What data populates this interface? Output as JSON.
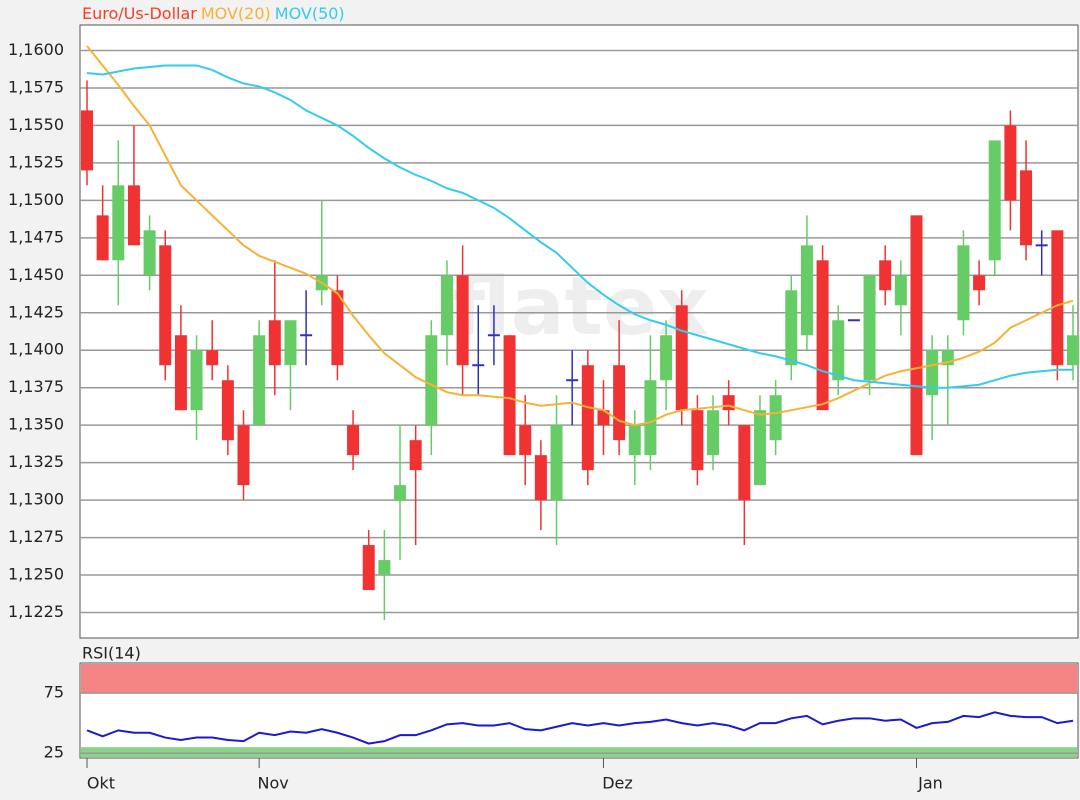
{
  "chart_data": [
    {
      "type": "candlestick",
      "name": "Euro/Us-Dollar",
      "name_color": "#ff3b1f",
      "watermark": "flatex",
      "categories": [
        "Okt",
        null,
        null,
        null,
        null,
        null,
        null,
        null,
        null,
        null,
        null,
        "Nov",
        null,
        null,
        null,
        null,
        null,
        null,
        null,
        null,
        null,
        null,
        null,
        null,
        null,
        null,
        null,
        null,
        null,
        null,
        null,
        null,
        null,
        "Dez",
        null,
        null,
        null,
        null,
        null,
        null,
        null,
        null,
        null,
        null,
        null,
        null,
        null,
        null,
        null,
        null,
        null,
        null,
        null,
        "Jan",
        null,
        null,
        null,
        null,
        null,
        null,
        null,
        null,
        null,
        null
      ],
      "open": [
        1.156,
        1.149,
        1.146,
        1.151,
        1.145,
        1.147,
        1.141,
        1.136,
        1.14,
        1.138,
        1.135,
        1.135,
        1.142,
        1.139,
        1.141,
        1.144,
        1.144,
        1.135,
        1.127,
        1.125,
        1.13,
        1.134,
        1.135,
        1.141,
        1.145,
        1.139,
        1.141,
        1.141,
        1.135,
        1.133,
        1.13,
        1.138,
        1.139,
        1.136,
        1.139,
        1.133,
        1.133,
        1.138,
        1.143,
        1.136,
        1.133,
        1.137,
        1.135,
        1.131,
        1.134,
        1.139,
        1.141,
        1.146,
        1.138,
        1.142,
        1.138,
        1.146,
        1.143,
        1.149,
        1.137,
        1.139,
        1.142,
        1.145,
        1.146,
        1.155,
        1.152,
        1.147,
        1.148,
        1.139
      ],
      "high": [
        1.158,
        1.151,
        1.154,
        1.155,
        1.149,
        1.148,
        1.143,
        1.141,
        1.142,
        1.139,
        1.136,
        1.142,
        1.146,
        1.142,
        1.144,
        1.15,
        1.145,
        1.136,
        1.128,
        1.128,
        1.135,
        1.135,
        1.142,
        1.146,
        1.147,
        1.143,
        1.143,
        1.141,
        1.137,
        1.134,
        1.137,
        1.14,
        1.14,
        1.138,
        1.142,
        1.136,
        1.141,
        1.142,
        1.144,
        1.137,
        1.137,
        1.138,
        1.135,
        1.137,
        1.138,
        1.145,
        1.149,
        1.147,
        1.143,
        1.142,
        1.145,
        1.147,
        1.146,
        1.149,
        1.141,
        1.141,
        1.148,
        1.146,
        1.154,
        1.156,
        1.154,
        1.148,
        1.148,
        1.143
      ],
      "low": [
        1.151,
        1.146,
        1.143,
        1.147,
        1.144,
        1.138,
        1.136,
        1.134,
        1.138,
        1.133,
        1.13,
        1.135,
        1.137,
        1.136,
        1.139,
        1.143,
        1.138,
        1.132,
        1.124,
        1.122,
        1.126,
        1.127,
        1.133,
        1.139,
        1.137,
        1.137,
        1.139,
        1.133,
        1.131,
        1.128,
        1.127,
        1.135,
        1.131,
        1.133,
        1.133,
        1.131,
        1.132,
        1.136,
        1.135,
        1.131,
        1.132,
        1.135,
        1.127,
        1.131,
        1.133,
        1.138,
        1.14,
        1.136,
        1.137,
        1.142,
        1.137,
        1.143,
        1.141,
        1.133,
        1.134,
        1.135,
        1.141,
        1.143,
        1.145,
        1.148,
        1.146,
        1.145,
        1.138,
        1.138
      ],
      "close": [
        1.152,
        1.146,
        1.151,
        1.147,
        1.148,
        1.139,
        1.136,
        1.14,
        1.139,
        1.134,
        1.131,
        1.141,
        1.139,
        1.142,
        1.141,
        1.145,
        1.139,
        1.133,
        1.124,
        1.126,
        1.131,
        1.132,
        1.141,
        1.145,
        1.139,
        1.139,
        1.141,
        1.133,
        1.133,
        1.13,
        1.135,
        1.138,
        1.132,
        1.135,
        1.134,
        1.135,
        1.138,
        1.141,
        1.136,
        1.132,
        1.136,
        1.136,
        1.13,
        1.136,
        1.137,
        1.144,
        1.147,
        1.136,
        1.142,
        1.142,
        1.145,
        1.144,
        1.145,
        1.133,
        1.14,
        1.14,
        1.147,
        1.144,
        1.154,
        1.15,
        1.147,
        1.147,
        1.139,
        1.141
      ],
      "up_color": "#66cc66",
      "down_color": "#f03232",
      "doji_color": "#3030c0",
      "series": [
        {
          "name": "MOV(20)",
          "color": "#f5b335",
          "values": [
            1.1603,
            1.159,
            1.1577,
            1.1563,
            1.155,
            1.153,
            1.151,
            1.15,
            1.149,
            1.148,
            1.147,
            1.1463,
            1.1459,
            1.1455,
            1.1451,
            1.1445,
            1.1438,
            1.1423,
            1.141,
            1.1398,
            1.139,
            1.1382,
            1.1377,
            1.1372,
            1.137,
            1.137,
            1.1369,
            1.1368,
            1.1365,
            1.1363,
            1.1364,
            1.1365,
            1.1362,
            1.136,
            1.1353,
            1.135,
            1.1352,
            1.1357,
            1.136,
            1.1361,
            1.1362,
            1.1363,
            1.136,
            1.1357,
            1.1358,
            1.136,
            1.1362,
            1.1364,
            1.1368,
            1.1373,
            1.1378,
            1.1383,
            1.1386,
            1.1388,
            1.139,
            1.1392,
            1.1395,
            1.1399,
            1.1405,
            1.1415,
            1.142,
            1.1425,
            1.143,
            1.1433
          ]
        },
        {
          "name": "MOV(50)",
          "color": "#33ccee",
          "values": [
            1.1585,
            1.1584,
            1.1586,
            1.1588,
            1.1589,
            1.159,
            1.159,
            1.159,
            1.1587,
            1.1582,
            1.1578,
            1.1576,
            1.1572,
            1.1567,
            1.156,
            1.1555,
            1.155,
            1.1543,
            1.1535,
            1.1528,
            1.1522,
            1.1517,
            1.1513,
            1.1508,
            1.1505,
            1.15,
            1.1495,
            1.1488,
            1.148,
            1.1472,
            1.1465,
            1.1455,
            1.1445,
            1.1437,
            1.143,
            1.1424,
            1.142,
            1.1417,
            1.1413,
            1.141,
            1.1407,
            1.1404,
            1.1401,
            1.1398,
            1.1396,
            1.1393,
            1.139,
            1.1386,
            1.1383,
            1.138,
            1.1379,
            1.1378,
            1.1377,
            1.1376,
            1.1375,
            1.1375,
            1.1376,
            1.1377,
            1.138,
            1.1383,
            1.1385,
            1.1386,
            1.1387,
            1.1387
          ]
        }
      ],
      "ylim": [
        1.1208,
        1.1617
      ],
      "yticks": [
        {
          "value": 1.16,
          "label": "1,1600"
        },
        {
          "value": 1.1575,
          "label": "1,1575"
        },
        {
          "value": 1.155,
          "label": "1,1550"
        },
        {
          "value": 1.1525,
          "label": "1,1525"
        },
        {
          "value": 1.15,
          "label": "1,1500"
        },
        {
          "value": 1.1475,
          "label": "1,1475"
        },
        {
          "value": 1.145,
          "label": "1,1450"
        },
        {
          "value": 1.1425,
          "label": "1,1425"
        },
        {
          "value": 1.14,
          "label": "1,1400"
        },
        {
          "value": 1.1375,
          "label": "1,1375"
        },
        {
          "value": 1.135,
          "label": "1,1350"
        },
        {
          "value": 1.1325,
          "label": "1,1325"
        },
        {
          "value": 1.13,
          "label": "1,1300"
        },
        {
          "value": 1.1275,
          "label": "1,1275"
        },
        {
          "value": 1.125,
          "label": "1,1250"
        },
        {
          "value": 1.1225,
          "label": "1,1225"
        }
      ],
      "grid": true
    },
    {
      "type": "line",
      "title": "RSI(14)",
      "color": "#1a1ad0",
      "values": [
        44,
        39,
        44,
        42,
        42,
        38,
        36,
        38,
        38,
        36,
        35,
        42,
        40,
        43,
        42,
        45,
        42,
        38,
        33,
        35,
        40,
        40,
        44,
        49,
        50,
        48,
        48,
        50,
        45,
        44,
        47,
        50,
        48,
        50,
        48,
        50,
        51,
        53,
        50,
        48,
        50,
        48,
        44,
        50,
        50,
        54,
        56,
        49,
        52,
        54,
        54,
        52,
        53,
        46,
        50,
        51,
        56,
        55,
        59,
        56,
        55,
        55,
        50,
        52
      ],
      "ylim": [
        21,
        100
      ],
      "yticks": [
        75,
        25
      ],
      "overbought": 75,
      "oversold": 30,
      "overbought_color": "#f58585",
      "oversold_color": "#88d488",
      "grid": true
    }
  ]
}
